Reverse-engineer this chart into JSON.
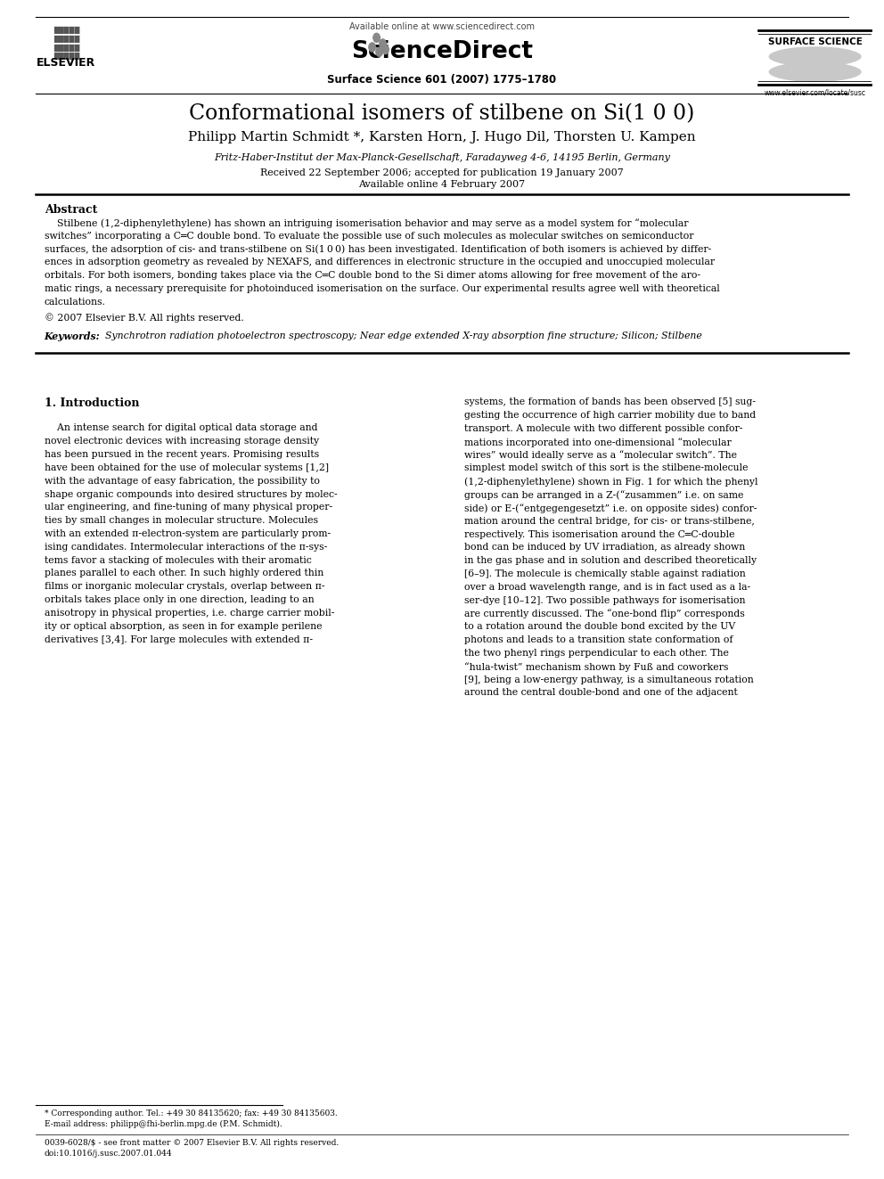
{
  "title_display": "Conformational isomers of stilbene on Si(1 0 0)",
  "authors": "Philipp Martin Schmidt *, Karsten Horn, J. Hugo Dil, Thorsten U. Kampen",
  "affiliation": "Fritz-Haber-Institut der Max-Planck-Gesellschaft, Faradayweg 4-6, 14195 Berlin, Germany",
  "received": "Received 22 September 2006; accepted for publication 19 January 2007",
  "available": "Available online 4 February 2007",
  "journal": "Surface Science 601 (2007) 1775–1780",
  "available_online": "Available online at www.sciencedirect.com",
  "sciencedirect": "ScienceDirect",
  "surface_science": "SURFACE SCIENCE",
  "elsevier": "ELSEVIER",
  "url": "www.elsevier.com/locate/susc",
  "abstract_title": "Abstract",
  "copyright": "© 2007 Elsevier B.V. All rights reserved.",
  "keywords_label": "Keywords:",
  "keywords_text": "  Synchrotron radiation photoelectron spectroscopy; Near edge extended X-ray absorption fine structure; Silicon; Stilbene",
  "section1_title": "1. Introduction",
  "footnote": "* Corresponding author. Tel.: +49 30 84135620; fax: +49 30 84135603.",
  "footnote2": "E-mail address: philipp@fhi-berlin.mpg.de (P.M. Schmidt).",
  "issn": "0039-6028/$ - see front matter © 2007 Elsevier B.V. All rights reserved.",
  "doi": "doi:10.1016/j.susc.2007.01.044",
  "bg_color": "#ffffff",
  "text_color": "#000000",
  "abstract_lines": [
    "    Stilbene (1,2-diphenylethylene) has shown an intriguing isomerisation behavior and may serve as a model system for “molecular",
    "switches” incorporating a C═C double bond. To evaluate the possible use of such molecules as molecular switches on semiconductor",
    "surfaces, the adsorption of cis- and trans-stilbene on Si(1 0 0) has been investigated. Identification of both isomers is achieved by differ-",
    "ences in adsorption geometry as revealed by NEXAFS, and differences in electronic structure in the occupied and unoccupied molecular",
    "orbitals. For both isomers, bonding takes place via the C═C double bond to the Si dimer atoms allowing for free movement of the aro-",
    "matic rings, a necessary prerequisite for photoinduced isomerisation on the surface. Our experimental results agree well with theoretical",
    "calculations."
  ],
  "col1_lines": [
    "    An intense search for digital optical data storage and",
    "novel electronic devices with increasing storage density",
    "has been pursued in the recent years. Promising results",
    "have been obtained for the use of molecular systems [1,2]",
    "with the advantage of easy fabrication, the possibility to",
    "shape organic compounds into desired structures by molec-",
    "ular engineering, and fine-tuning of many physical proper-",
    "ties by small changes in molecular structure. Molecules",
    "with an extended π-electron-system are particularly prom-",
    "ising candidates. Intermolecular interactions of the π-sys-",
    "tems favor a stacking of molecules with their aromatic",
    "planes parallel to each other. In such highly ordered thin",
    "films or inorganic molecular crystals, overlap between π-",
    "orbitals takes place only in one direction, leading to an",
    "anisotropy in physical properties, i.e. charge carrier mobil-",
    "ity or optical absorption, as seen in for example perilene",
    "derivatives [3,4]. For large molecules with extended π-"
  ],
  "col2_lines": [
    "systems, the formation of bands has been observed [5] sug-",
    "gesting the occurrence of high carrier mobility due to band",
    "transport. A molecule with two different possible confor-",
    "mations incorporated into one-dimensional “molecular",
    "wires” would ideally serve as a “molecular switch”. The",
    "simplest model switch of this sort is the stilbene-molecule",
    "(1,2-diphenylethylene) shown in Fig. 1 for which the phenyl",
    "groups can be arranged in a Z-(“zusammen” i.e. on same",
    "side) or E-(“entgegengesetzt” i.e. on opposite sides) confor-",
    "mation around the central bridge, for cis- or trans-stilbene,",
    "respectively. This isomerisation around the C═C-double",
    "bond can be induced by UV irradiation, as already shown",
    "in the gas phase and in solution and described theoretically",
    "[6–9]. The molecule is chemically stable against radiation",
    "over a broad wavelength range, and is in fact used as a la-",
    "ser-dye [10–12]. Two possible pathways for isomerisation",
    "are currently discussed. The “one-bond flip” corresponds",
    "to a rotation around the double bond excited by the UV",
    "photons and leads to a transition state conformation of",
    "the two phenyl rings perpendicular to each other. The",
    "“hula-twist” mechanism shown by Fuß and coworkers",
    "[9], being a low-energy pathway, is a simultaneous rotation",
    "around the central double-bond and one of the adjacent"
  ]
}
